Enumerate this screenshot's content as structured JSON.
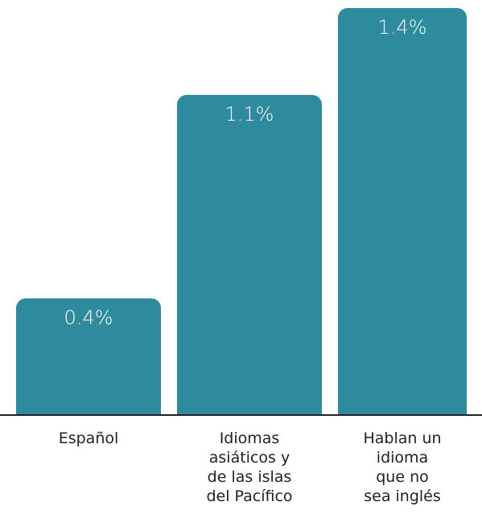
{
  "chart_data": {
    "type": "bar",
    "categories": [
      "Español",
      "Idiomas\nasiáticos y\nde las islas\ndel Pacífico",
      "Hablan un\nidioma\nque no\nsea inglés"
    ],
    "values": [
      0.4,
      1.1,
      1.4
    ],
    "value_labels": [
      "0.4%",
      "1.1%",
      "1.4%"
    ],
    "color": "#2e8b9d"
  }
}
